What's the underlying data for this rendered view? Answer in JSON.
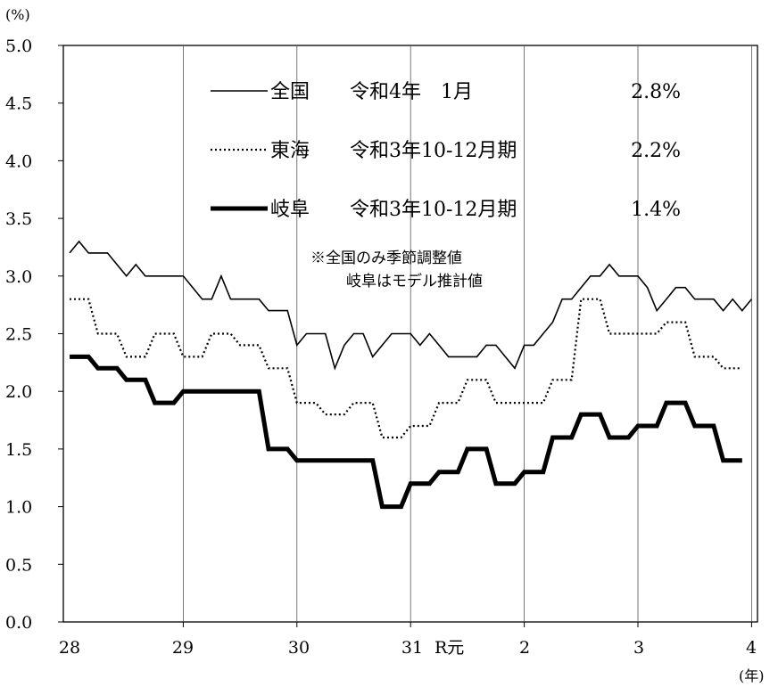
{
  "chart_data": {
    "type": "line",
    "y_unit": "(%)",
    "x_unit": "(年)",
    "ylim": [
      0,
      5
    ],
    "yticks": [
      "0.0",
      "0.5",
      "1.0",
      "1.5",
      "2.0",
      "2.5",
      "3.0",
      "3.5",
      "4.0",
      "4.5",
      "5.0"
    ],
    "x_start_label": "28",
    "x_year_labels": [
      "28",
      "29",
      "30",
      "31",
      "R元",
      "2",
      "3",
      "4"
    ],
    "x_labels_display": [
      {
        "text": "28"
      },
      {
        "text": "29"
      },
      {
        "text": "30"
      },
      {
        "text": "31"
      },
      {
        "text": "R元"
      },
      {
        "text": "2"
      },
      {
        "text": "3"
      },
      {
        "text": "4"
      }
    ],
    "grid": "vertical lines at each year",
    "legend": [
      {
        "name": "全国",
        "period": "令和4年　1月",
        "value": "2.8%",
        "style": "thin"
      },
      {
        "name": "東海",
        "period": "令和3年10-12月期",
        "value": "2.2%",
        "style": "dotted"
      },
      {
        "name": "岐阜",
        "period": "令和3年10-12月期",
        "value": "1.4%",
        "style": "thick"
      }
    ],
    "annotations": [
      "※全国のみ季節調整値",
      "岐阜はモデル推計値"
    ],
    "series": [
      {
        "name": "全国",
        "style": "thin",
        "frequency": "monthly",
        "values": [
          3.2,
          3.3,
          3.2,
          3.2,
          3.2,
          3.1,
          3.0,
          3.1,
          3.0,
          3.0,
          3.0,
          3.0,
          3.0,
          2.9,
          2.8,
          2.8,
          3.0,
          2.8,
          2.8,
          2.8,
          2.8,
          2.7,
          2.7,
          2.7,
          2.4,
          2.5,
          2.5,
          2.5,
          2.2,
          2.4,
          2.5,
          2.5,
          2.3,
          2.4,
          2.5,
          2.5,
          2.5,
          2.4,
          2.5,
          2.4,
          2.3,
          2.3,
          2.3,
          2.3,
          2.4,
          2.4,
          2.3,
          2.2,
          2.4,
          2.4,
          2.5,
          2.6,
          2.8,
          2.8,
          2.9,
          3.0,
          3.0,
          3.1,
          3.0,
          3.0,
          3.0,
          2.9,
          2.7,
          2.8,
          2.9,
          2.9,
          2.8,
          2.8,
          2.8,
          2.7,
          2.8,
          2.7,
          2.8
        ]
      },
      {
        "name": "東海",
        "style": "dotted",
        "frequency": "quarterly",
        "values": [
          2.8,
          2.5,
          2.3,
          2.5,
          2.3,
          2.5,
          2.4,
          2.2,
          1.9,
          1.8,
          1.9,
          1.6,
          1.7,
          1.9,
          2.1,
          1.9,
          1.9,
          2.1,
          2.8,
          2.5,
          2.5,
          2.6,
          2.3,
          2.2
        ]
      },
      {
        "name": "岐阜",
        "style": "thick",
        "frequency": "quarterly",
        "values": [
          2.3,
          2.2,
          2.1,
          1.9,
          2.0,
          2.0,
          2.0,
          1.5,
          1.4,
          1.4,
          1.4,
          1.0,
          1.2,
          1.3,
          1.5,
          1.2,
          1.3,
          1.6,
          1.8,
          1.6,
          1.7,
          1.9,
          1.7,
          1.4
        ]
      }
    ]
  }
}
